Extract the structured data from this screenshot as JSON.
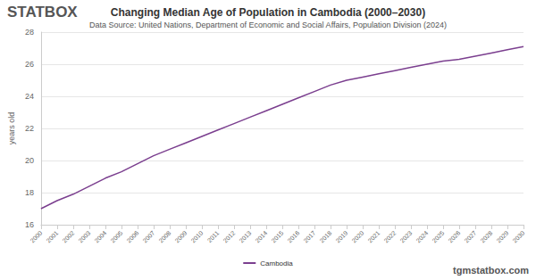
{
  "chart_data": {
    "type": "line",
    "title": "Changing Median Age of Population in Cambodia (2000–2030)",
    "subtitle": "Data Source: United Nations, Department of Economic and Social Affairs, Population Division (2024)",
    "y_label": "years old",
    "annotations": [
      "STATBOX",
      "tgmstatbox.com"
    ],
    "categories": [
      "2000",
      "2001",
      "2002",
      "2003",
      "2004",
      "2005",
      "2006",
      "2007",
      "2008",
      "2009",
      "2010",
      "2011",
      "2012",
      "2013",
      "2014",
      "2015",
      "2016",
      "2017",
      "2018",
      "2019",
      "2020",
      "2021",
      "2022",
      "2023",
      "2024",
      "2025",
      "2026",
      "2027",
      "2028",
      "2029",
      "2030"
    ],
    "series": [
      {
        "name": "Cambodia",
        "color": "#7b3f8f",
        "values": [
          17.0,
          17.5,
          17.9,
          18.4,
          18.9,
          19.3,
          19.8,
          20.3,
          20.7,
          21.1,
          21.5,
          21.9,
          22.3,
          22.7,
          23.1,
          23.5,
          23.9,
          24.3,
          24.7,
          25.0,
          25.2,
          25.4,
          25.6,
          25.8,
          26.0,
          26.2,
          26.3,
          26.5,
          26.7,
          26.9,
          27.1
        ]
      }
    ],
    "ylim": [
      16,
      28
    ],
    "yticks": [
      16,
      18,
      20,
      22,
      24,
      26,
      28
    ],
    "grid": true,
    "legend": "bottom"
  }
}
